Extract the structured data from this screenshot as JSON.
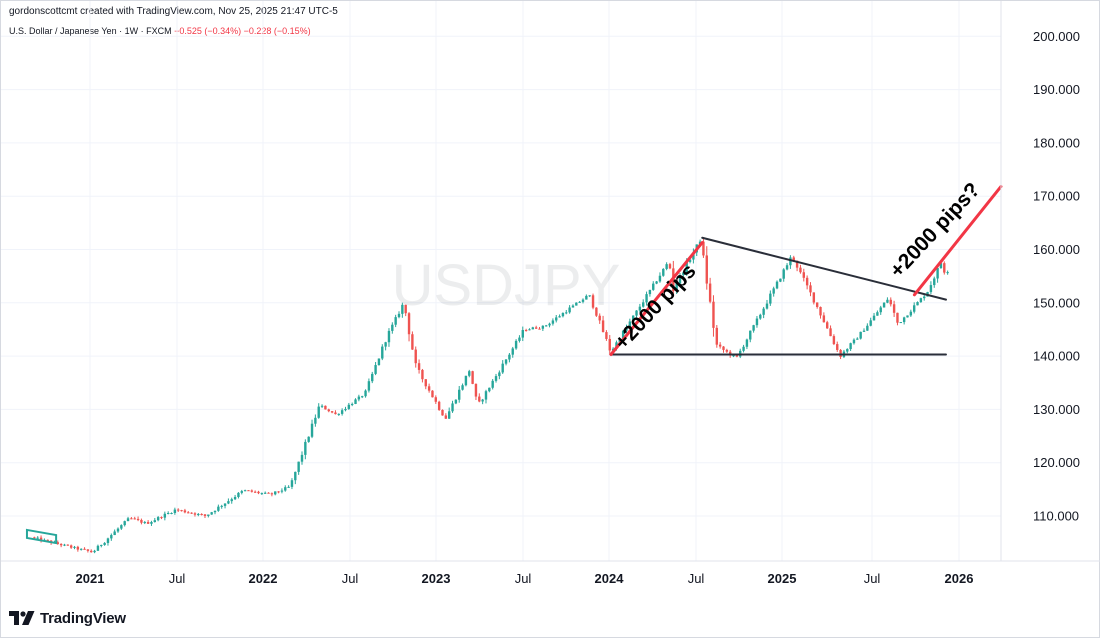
{
  "header": {
    "credit": "gordonscottcmt created with TradingView.com, Nov 25, 2025 21:47 UTC-5",
    "symbol": "U.S. Dollar / Japanese Yen · 1W · FXCM",
    "change": "−0.525 (−0.34%) −0.228 (−0.15%)"
  },
  "footer": {
    "brand": "TradingView",
    "logo_icon": "tradingview-logo-icon"
  },
  "colors": {
    "up": "#26a69a",
    "down": "#ef5350",
    "annotation_red": "#f23645",
    "trendline": "#2a2e39",
    "grid": "#f0f3fa"
  },
  "chart_data": {
    "type": "candlestick",
    "symbol_watermark": "USDJPY",
    "timeframe": "1W",
    "ylim": [
      100,
      200
    ],
    "y_ticks": [
      "110.000",
      "120.000",
      "130.000",
      "140.000",
      "150.000",
      "160.000",
      "170.000",
      "180.000",
      "190.000",
      "200.000"
    ],
    "x_ticks": [
      {
        "label": "2021",
        "major": true
      },
      {
        "label": "Jul",
        "major": false
      },
      {
        "label": "2022",
        "major": true
      },
      {
        "label": "Jul",
        "major": false
      },
      {
        "label": "2023",
        "major": true
      },
      {
        "label": "Jul",
        "major": false
      },
      {
        "label": "2024",
        "major": true
      },
      {
        "label": "Jul",
        "major": false
      },
      {
        "label": "2025",
        "major": true
      },
      {
        "label": "Jul",
        "major": false
      },
      {
        "label": "2026",
        "major": true
      }
    ],
    "price_path": [
      [
        "2020-09-01",
        106.0
      ],
      [
        "2020-12-01",
        104.0
      ],
      [
        "2021-01-08",
        103.2
      ],
      [
        "2021-03-26",
        109.6
      ],
      [
        "2021-05-01",
        108.6
      ],
      [
        "2021-07-01",
        111.2
      ],
      [
        "2021-09-01",
        110.0
      ],
      [
        "2021-11-20",
        114.8
      ],
      [
        "2022-01-15",
        114.0
      ],
      [
        "2022-02-25",
        115.5
      ],
      [
        "2022-04-28",
        130.8
      ],
      [
        "2022-06-01",
        129.0
      ],
      [
        "2022-08-01",
        133.0
      ],
      [
        "2022-09-15",
        143.5
      ],
      [
        "2022-10-21",
        150.0
      ],
      [
        "2022-11-15",
        138.0
      ],
      [
        "2023-01-16",
        128.2
      ],
      [
        "2023-03-08",
        137.5
      ],
      [
        "2023-03-24",
        130.5
      ],
      [
        "2023-06-30",
        145.0
      ],
      [
        "2023-08-10",
        145.5
      ],
      [
        "2023-11-13",
        151.5
      ],
      [
        "2023-12-28",
        140.8
      ],
      [
        "2024-04-29",
        158.0
      ],
      [
        "2024-05-03",
        152.0
      ],
      [
        "2024-07-03",
        161.9
      ],
      [
        "2024-08-05",
        142.0
      ],
      [
        "2024-09-16",
        139.6
      ],
      [
        "2025-01-10",
        158.8
      ],
      [
        "2025-03-01",
        149.8
      ],
      [
        "2025-04-21",
        140.0
      ],
      [
        "2025-06-01",
        144.0
      ],
      [
        "2025-07-31",
        150.9
      ],
      [
        "2025-08-20",
        146.0
      ],
      [
        "2025-10-20",
        152.0
      ],
      [
        "2025-11-20",
        157.9
      ],
      [
        "2025-11-25",
        156.0
      ]
    ],
    "annotations": [
      {
        "name": "resistance-trendline",
        "color": "trendline",
        "from": [
          "2024-07-03",
          162.2
        ],
        "to": [
          "2025-11-25",
          150.6
        ]
      },
      {
        "name": "support-line",
        "color": "trendline",
        "from": [
          "2023-12-25",
          140.3
        ],
        "to": [
          "2025-11-25",
          140.3
        ]
      },
      {
        "name": "rally-arrow-1",
        "color": "annotation_red",
        "from": [
          "2023-12-25",
          140.3
        ],
        "to": [
          "2024-07-03",
          161.3
        ]
      },
      {
        "name": "projection-arrow",
        "color": "annotation_red",
        "from": [
          "2025-09-20",
          151.5
        ],
        "to": [
          "2026-03-20",
          171.8
        ]
      },
      {
        "name": "flag-box-2020",
        "color": "up",
        "from": [
          "2020-08-20",
          107.2
        ],
        "to": [
          "2020-10-20",
          106.8
        ]
      }
    ],
    "labels": [
      {
        "text": "+2000 pips",
        "anchor": [
          "2024-01-20",
          141.0
        ],
        "angle": -47
      },
      {
        "text": "+2000 pips?",
        "anchor": [
          "2025-08-18",
          154.5
        ],
        "angle": -47
      }
    ]
  }
}
